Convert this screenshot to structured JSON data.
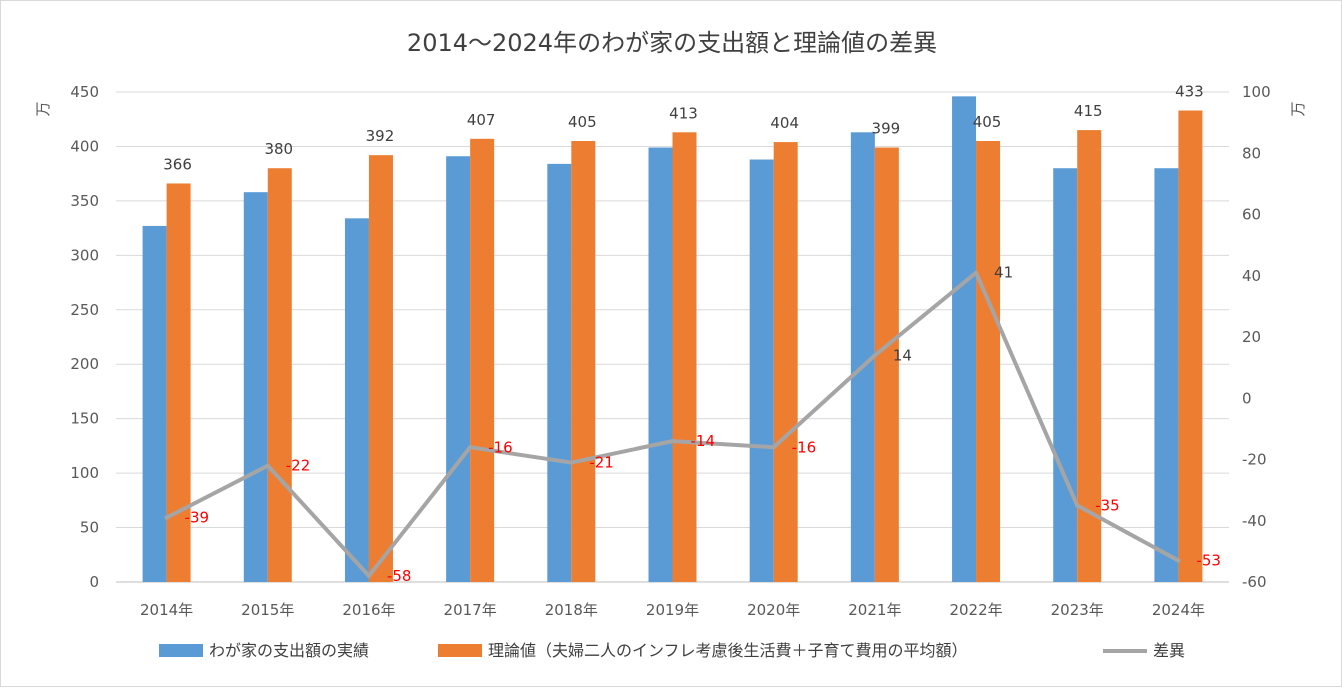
{
  "chart_data": {
    "type": "bar",
    "title": "2014〜2024年のわが家の支出額と理論値の差異",
    "categories": [
      "2014年",
      "2015年",
      "2016年",
      "2017年",
      "2018年",
      "2019年",
      "2020年",
      "2021年",
      "2022年",
      "2023年",
      "2024年"
    ],
    "y_left": {
      "unit": "万",
      "min": 0,
      "max": 450,
      "ticks": [
        "0",
        "50",
        "100",
        "150",
        "200",
        "250",
        "300",
        "350",
        "400",
        "450"
      ]
    },
    "y_right": {
      "unit": "万",
      "min": -60,
      "max": 100,
      "ticks": [
        "-60",
        "-40",
        "-20",
        "0",
        "20",
        "40",
        "60",
        "80",
        "100"
      ]
    },
    "grid": true,
    "legend_position": "bottom",
    "series": [
      {
        "name": "わが家の支出額の実績",
        "type": "bar",
        "axis": "left",
        "color": "#5b9bd5",
        "values": [
          327,
          358,
          334,
          391,
          384,
          399,
          388,
          413,
          446,
          380,
          380
        ]
      },
      {
        "name": "理論値（夫婦二人のインフレ考慮後生活費＋子育て費用の平均額）",
        "type": "bar",
        "axis": "left",
        "color": "#ed7d31",
        "values": [
          366,
          380,
          392,
          407,
          405,
          413,
          404,
          399,
          405,
          415,
          433
        ],
        "labels": [
          "366",
          "380",
          "392",
          "407",
          "405",
          "413",
          "404",
          "399",
          "405",
          "415",
          "433"
        ]
      },
      {
        "name": "差異",
        "type": "line",
        "axis": "right",
        "color": "#a5a5a5",
        "values": [
          -39,
          -22,
          -58,
          -16,
          -21,
          -14,
          -16,
          14,
          41,
          -35,
          -53
        ],
        "labels": [
          "-39",
          "-22",
          "-58",
          "-16",
          "-21",
          "-14",
          "-16",
          "14",
          "41",
          "-35",
          "-53"
        ]
      }
    ],
    "label_colors": {
      "negative": "#ff0000",
      "positive": "#404040"
    }
  }
}
